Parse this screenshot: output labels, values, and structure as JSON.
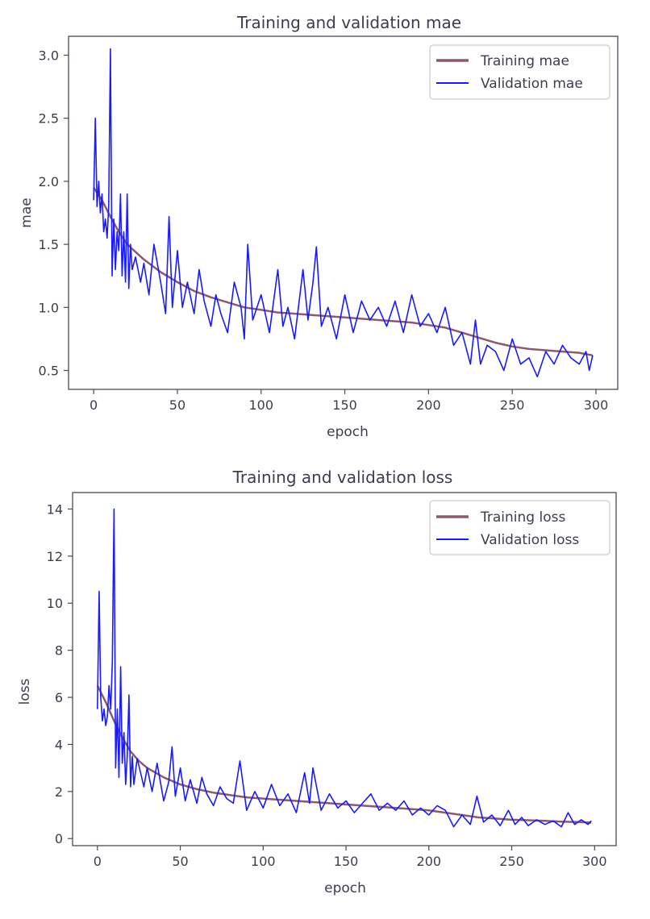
{
  "chart_data": [
    {
      "type": "line",
      "title": "Training and validation mae",
      "xlabel": "epoch",
      "ylabel": "mae",
      "xlim": [
        -15,
        313
      ],
      "ylim": [
        0.35,
        3.15
      ],
      "xticks": [
        0,
        50,
        100,
        150,
        200,
        250,
        300
      ],
      "yticks": [
        0.5,
        1.0,
        1.5,
        2.0,
        2.5,
        3.0
      ],
      "ytick_labels": [
        "0.5",
        "1.0",
        "1.5",
        "2.0",
        "2.5",
        "3.0"
      ],
      "grid": false,
      "legend": "top-right",
      "series": [
        {
          "name": "Training mae",
          "color": "#8b5a6e",
          "kind": "smooth",
          "x": [
            0,
            5,
            10,
            15,
            20,
            30,
            40,
            50,
            60,
            70,
            80,
            90,
            100,
            110,
            120,
            130,
            140,
            150,
            160,
            170,
            180,
            190,
            200,
            210,
            220,
            230,
            240,
            250,
            260,
            270,
            280,
            290,
            298
          ],
          "y": [
            1.95,
            1.85,
            1.72,
            1.6,
            1.5,
            1.38,
            1.28,
            1.2,
            1.13,
            1.08,
            1.04,
            1.0,
            0.98,
            0.96,
            0.95,
            0.94,
            0.93,
            0.92,
            0.91,
            0.9,
            0.89,
            0.88,
            0.86,
            0.84,
            0.8,
            0.76,
            0.72,
            0.69,
            0.67,
            0.66,
            0.65,
            0.64,
            0.62
          ]
        },
        {
          "name": "Validation mae",
          "color": "#1a1aff",
          "kind": "noisy",
          "x": [
            0,
            1,
            2,
            3,
            4,
            5,
            6,
            7,
            8,
            9,
            10,
            11,
            12,
            13,
            14,
            15,
            16,
            17,
            18,
            19,
            20,
            21,
            22,
            23,
            25,
            28,
            30,
            33,
            36,
            40,
            43,
            45,
            47,
            50,
            53,
            56,
            60,
            63,
            66,
            70,
            73,
            76,
            80,
            84,
            88,
            90,
            92,
            95,
            100,
            105,
            110,
            113,
            116,
            120,
            125,
            128,
            131,
            133,
            136,
            140,
            145,
            150,
            155,
            160,
            165,
            170,
            175,
            180,
            185,
            190,
            195,
            200,
            205,
            210,
            215,
            220,
            225,
            228,
            231,
            235,
            240,
            245,
            250,
            255,
            260,
            265,
            270,
            275,
            280,
            285,
            290,
            294,
            296,
            298
          ],
          "y": [
            1.85,
            2.5,
            1.8,
            2.0,
            1.75,
            1.9,
            1.6,
            1.7,
            1.55,
            1.8,
            3.05,
            1.25,
            1.7,
            1.3,
            1.6,
            1.45,
            1.9,
            1.25,
            1.6,
            1.2,
            1.9,
            1.15,
            1.5,
            1.3,
            1.4,
            1.2,
            1.35,
            1.1,
            1.5,
            1.2,
            0.95,
            1.72,
            1.0,
            1.45,
            1.0,
            1.2,
            0.95,
            1.3,
            1.05,
            0.85,
            1.1,
            0.95,
            0.8,
            1.2,
            1.0,
            0.75,
            1.5,
            0.9,
            1.1,
            0.8,
            1.3,
            0.85,
            1.0,
            0.75,
            1.3,
            0.9,
            1.2,
            1.48,
            0.85,
            1.0,
            0.75,
            1.1,
            0.8,
            1.05,
            0.9,
            1.0,
            0.85,
            1.05,
            0.8,
            1.1,
            0.85,
            0.95,
            0.8,
            1.0,
            0.7,
            0.8,
            0.55,
            0.9,
            0.55,
            0.7,
            0.65,
            0.5,
            0.75,
            0.55,
            0.6,
            0.45,
            0.65,
            0.55,
            0.7,
            0.6,
            0.55,
            0.65,
            0.5,
            0.62
          ]
        }
      ]
    },
    {
      "type": "line",
      "title": "Training and validation loss",
      "xlabel": "epoch",
      "ylabel": "loss",
      "xlim": [
        -15,
        313
      ],
      "ylim": [
        -0.3,
        14.7
      ],
      "xticks": [
        0,
        50,
        100,
        150,
        200,
        250,
        300
      ],
      "yticks": [
        0,
        2,
        4,
        6,
        8,
        10,
        12,
        14
      ],
      "ytick_labels": [
        "0",
        "2",
        "4",
        "6",
        "8",
        "10",
        "12",
        "14"
      ],
      "grid": false,
      "legend": "top-right",
      "series": [
        {
          "name": "Training loss",
          "color": "#8b5a6e",
          "kind": "smooth",
          "x": [
            0,
            5,
            10,
            15,
            20,
            25,
            30,
            40,
            50,
            60,
            70,
            80,
            90,
            100,
            110,
            120,
            130,
            140,
            150,
            160,
            170,
            180,
            190,
            200,
            210,
            220,
            230,
            240,
            250,
            260,
            270,
            280,
            290,
            298
          ],
          "y": [
            6.5,
            5.8,
            5.0,
            4.3,
            3.7,
            3.3,
            3.0,
            2.6,
            2.3,
            2.1,
            1.95,
            1.85,
            1.75,
            1.7,
            1.65,
            1.6,
            1.55,
            1.5,
            1.45,
            1.4,
            1.35,
            1.3,
            1.25,
            1.2,
            1.1,
            1.0,
            0.9,
            0.85,
            0.8,
            0.78,
            0.75,
            0.72,
            0.7,
            0.68
          ]
        },
        {
          "name": "Validation loss",
          "color": "#1a1aff",
          "kind": "noisy",
          "x": [
            0,
            1,
            2,
            3,
            4,
            5,
            6,
            7,
            8,
            9,
            10,
            11,
            12,
            13,
            14,
            15,
            16,
            17,
            18,
            19,
            20,
            21,
            22,
            24,
            26,
            28,
            30,
            33,
            36,
            40,
            43,
            45,
            47,
            50,
            53,
            56,
            60,
            63,
            66,
            70,
            74,
            78,
            82,
            86,
            90,
            95,
            100,
            105,
            110,
            115,
            120,
            125,
            128,
            130,
            135,
            140,
            145,
            150,
            155,
            160,
            165,
            170,
            175,
            180,
            185,
            190,
            195,
            200,
            205,
            210,
            215,
            220,
            225,
            229,
            233,
            238,
            243,
            248,
            252,
            256,
            260,
            265,
            270,
            275,
            280,
            284,
            288,
            292,
            296,
            298
          ],
          "y": [
            5.5,
            10.5,
            6.0,
            5.0,
            5.5,
            4.8,
            5.2,
            6.5,
            5.5,
            7.5,
            14.0,
            3.0,
            5.5,
            2.6,
            7.3,
            3.2,
            4.5,
            2.3,
            3.5,
            6.1,
            2.2,
            3.5,
            2.3,
            3.4,
            2.8,
            2.2,
            3.0,
            2.0,
            3.2,
            1.6,
            2.4,
            3.9,
            1.8,
            3.0,
            1.6,
            2.5,
            1.5,
            2.6,
            1.9,
            1.4,
            2.2,
            1.7,
            1.5,
            3.3,
            1.2,
            2.0,
            1.3,
            2.3,
            1.4,
            1.9,
            1.1,
            2.8,
            1.5,
            3.0,
            1.2,
            1.9,
            1.3,
            1.6,
            1.1,
            1.5,
            1.9,
            1.2,
            1.5,
            1.2,
            1.6,
            1.0,
            1.3,
            1.0,
            1.4,
            1.2,
            0.5,
            1.0,
            0.6,
            1.8,
            0.7,
            1.0,
            0.55,
            1.2,
            0.6,
            0.9,
            0.55,
            0.8,
            0.6,
            0.75,
            0.5,
            1.1,
            0.6,
            0.8,
            0.6,
            0.75
          ]
        }
      ]
    }
  ]
}
